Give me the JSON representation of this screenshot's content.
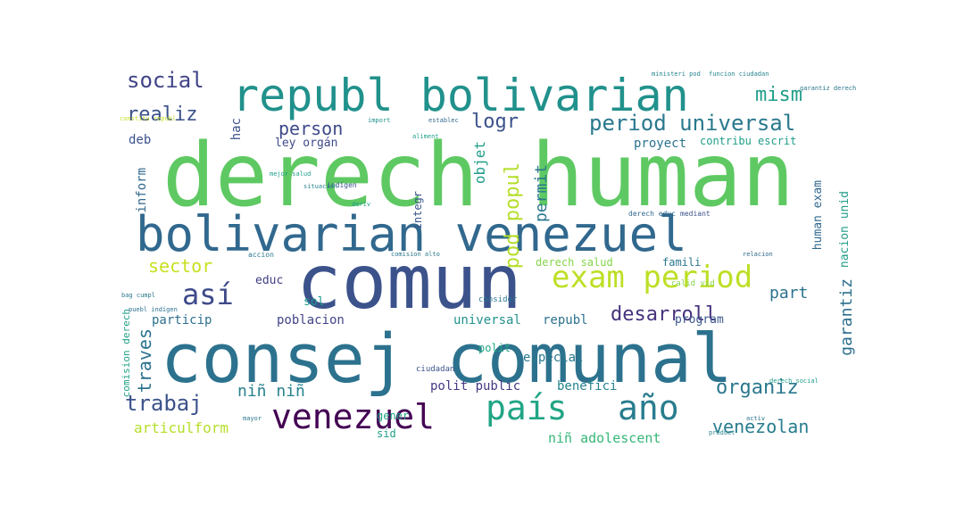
{
  "words": [
    {
      "text": "derech human",
      "color": "#5ec962"
    },
    {
      "text": "consej comunal",
      "color": "#2c728e"
    },
    {
      "text": "comun",
      "color": "#3b528b"
    },
    {
      "text": "bolivarian venezuel",
      "color": "#31688e"
    },
    {
      "text": "republ bolivarian",
      "color": "#21918c"
    },
    {
      "text": "venezuel",
      "color": "#440154"
    },
    {
      "text": "país",
      "color": "#21a585"
    },
    {
      "text": "año",
      "color": "#287d8e"
    },
    {
      "text": "exam period",
      "color": "#bddf26"
    },
    {
      "text": "así",
      "color": "#3e4a89"
    },
    {
      "text": "period universal",
      "color": "#2a788e"
    },
    {
      "text": "trabaj",
      "color": "#3b528b"
    },
    {
      "text": "desarroll",
      "color": "#46327e"
    },
    {
      "text": "organiz",
      "color": "#2a788e"
    },
    {
      "text": "social",
      "color": "#414487"
    },
    {
      "text": "realiz",
      "color": "#3b528b"
    },
    {
      "text": "logr",
      "color": "#3b528b"
    },
    {
      "text": "sector",
      "color": "#c8e020"
    },
    {
      "text": "person",
      "color": "#3e4a89"
    },
    {
      "text": "mism",
      "color": "#1f9e89"
    },
    {
      "text": "ca",
      "color": "#2d708e"
    },
    {
      "text": "venezolan",
      "color": "#287d8e"
    },
    {
      "text": "part",
      "color": "#2c728e"
    },
    {
      "text": "niñ niñ",
      "color": "#26828e"
    },
    {
      "text": "articulform",
      "color": "#b5de2b"
    },
    {
      "text": "niñ adolescent",
      "color": "#35b779"
    },
    {
      "text": "polit public",
      "color": "#443983"
    },
    {
      "text": "benefici",
      "color": "#25848e"
    },
    {
      "text": "poblacion",
      "color": "#414487"
    },
    {
      "text": "particip",
      "color": "#2d708e"
    },
    {
      "text": "universal",
      "color": "#21918c"
    },
    {
      "text": "republ",
      "color": "#2c728e"
    },
    {
      "text": "especial",
      "color": "#2a788e"
    },
    {
      "text": "program",
      "color": "#39568c"
    },
    {
      "text": "derech salud",
      "color": "#86d549"
    },
    {
      "text": "famili",
      "color": "#2a788e"
    },
    {
      "text": "proyect",
      "color": "#2c728e"
    },
    {
      "text": "contribu escrit",
      "color": "#1f9e89"
    },
    {
      "text": "ley orgán",
      "color": "#3e4a89"
    },
    {
      "text": "deb",
      "color": "#3b528b"
    },
    {
      "text": "educ",
      "color": "#433e85"
    },
    {
      "text": "sol",
      "color": "#1e9b8a"
    },
    {
      "text": "gener",
      "color": "#20a386"
    },
    {
      "text": "sid",
      "color": "#1f9e89"
    },
    {
      "text": "polit",
      "color": "#22a785"
    },
    {
      "text": "hac",
      "color": "#3b528b"
    },
    {
      "text": "objet",
      "color": "#1f9e89"
    },
    {
      "text": "pod popul",
      "color": "#b5de2b"
    },
    {
      "text": "permit",
      "color": "#2a788e"
    },
    {
      "text": "traves",
      "color": "#2c728e"
    },
    {
      "text": "garantiz",
      "color": "#2d708e"
    },
    {
      "text": "inform",
      "color": "#31688e"
    },
    {
      "text": "human exam",
      "color": "#31688e"
    },
    {
      "text": "nacion unid",
      "color": "#1f9e89"
    },
    {
      "text": "comision derech",
      "color": "#1fa187"
    },
    {
      "text": "integr",
      "color": "#39568c"
    },
    {
      "text": "indígen",
      "color": "#3b528b"
    },
    {
      "text": "consider",
      "color": "#2a788e"
    },
    {
      "text": "deriv",
      "color": "#1f9e89"
    },
    {
      "text": "calid vid",
      "color": "#86d549"
    },
    {
      "text": "mejor salud",
      "color": "#1f9e89"
    },
    {
      "text": "situacion",
      "color": "#25848e"
    },
    {
      "text": "bag cumpl",
      "color": "#2a788e"
    },
    {
      "text": "ciudadan",
      "color": "#3b528b"
    },
    {
      "text": "mediant",
      "color": "#3b528b"
    },
    {
      "text": "derech educ",
      "color": "#31688e"
    },
    {
      "text": "accion",
      "color": "#2a788e"
    },
    {
      "text": "puebl indígen",
      "color": "#2c728e"
    },
    {
      "text": "constitu republ",
      "color": "#c2df23"
    },
    {
      "text": "garantiz derech",
      "color": "#2a788e"
    },
    {
      "text": "ministeri pod",
      "color": "#26828e"
    },
    {
      "text": "funcion ciudadan",
      "color": "#25848e"
    },
    {
      "text": "comision alto",
      "color": "#2a788e"
    },
    {
      "text": "establec",
      "color": "#31688e"
    },
    {
      "text": "import",
      "color": "#21918c"
    },
    {
      "text": "aliment",
      "color": "#1f9e89"
    },
    {
      "text": "activ",
      "color": "#2c728e"
    },
    {
      "text": "product",
      "color": "#26828e"
    },
    {
      "text": "derech social",
      "color": "#1f9e89"
    },
    {
      "text": "mayor",
      "color": "#2a788e"
    },
    {
      "text": "relacion",
      "color": "#31688e"
    }
  ]
}
